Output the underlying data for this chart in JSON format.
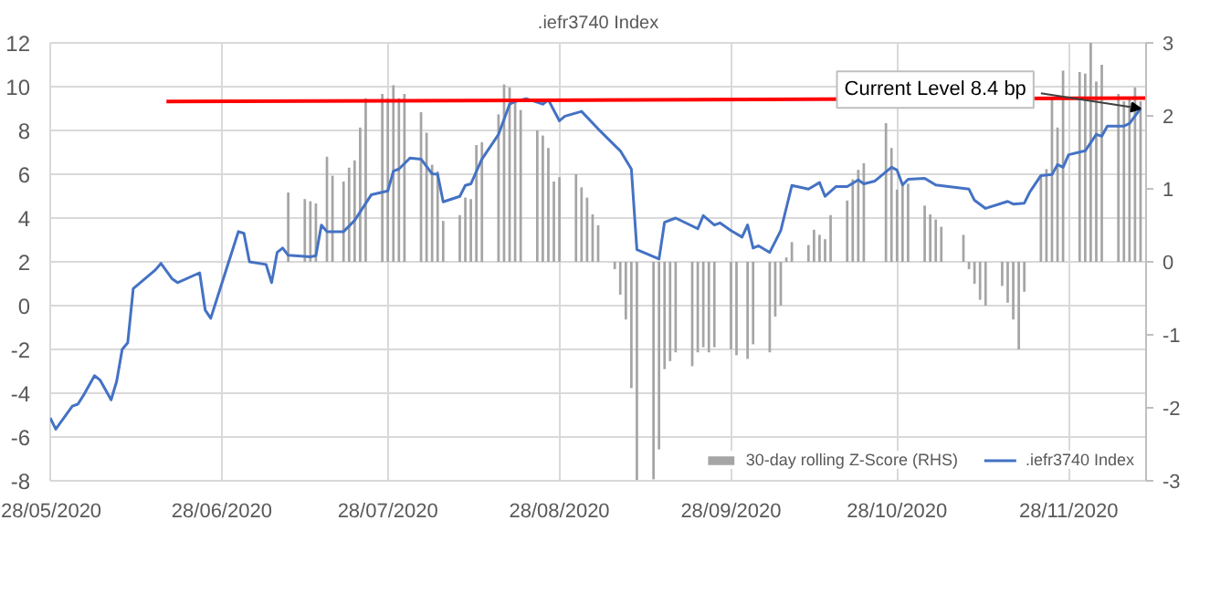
{
  "chart_data": {
    "type": "line",
    "title": ".iefr3740 Index",
    "xlim": [
      "2020-05-28",
      "2020-12-12"
    ],
    "xticks": [
      {
        "value": "2020-05-28",
        "label": "28/05/2020"
      },
      {
        "value": "2020-06-28",
        "label": "28/06/2020"
      },
      {
        "value": "2020-07-28",
        "label": "28/07/2020"
      },
      {
        "value": "2020-08-28",
        "label": "28/08/2020"
      },
      {
        "value": "2020-09-28",
        "label": "28/09/2020"
      },
      {
        "value": "2020-10-28",
        "label": "28/10/2020"
      },
      {
        "value": "2020-11-28",
        "label": "28/11/2020"
      }
    ],
    "ylim": [
      -8,
      12
    ],
    "yticks": [
      -8,
      -6,
      -4,
      -2,
      0,
      2,
      4,
      6,
      8,
      10,
      12
    ],
    "y2lim": [
      -3,
      3
    ],
    "y2ticks": [
      -3,
      -2,
      -1,
      0,
      1,
      2,
      3
    ],
    "grid": true,
    "legend": "bottom right",
    "annotations": [
      {
        "text": "Current Level 8.4 bp",
        "x": "2020-12-11",
        "y": 9.0
      }
    ],
    "series": [
      {
        "name": "30-day rolling Z-Score (RHS)",
        "type": "bar",
        "axis": "y2",
        "color": "#a5a5a5",
        "x": [
          "2020-07-10",
          "2020-07-13",
          "2020-07-14",
          "2020-07-15",
          "2020-07-17",
          "2020-07-18",
          "2020-07-20",
          "2020-07-21",
          "2020-07-22",
          "2020-07-23",
          "2020-07-24",
          "2020-07-27",
          "2020-07-28",
          "2020-07-29",
          "2020-07-30",
          "2020-07-31",
          "2020-08-03",
          "2020-08-04",
          "2020-08-05",
          "2020-08-06",
          "2020-08-07",
          "2020-08-10",
          "2020-08-11",
          "2020-08-12",
          "2020-08-13",
          "2020-08-14",
          "2020-08-17",
          "2020-08-18",
          "2020-08-19",
          "2020-08-20",
          "2020-08-21",
          "2020-08-24",
          "2020-08-25",
          "2020-08-26",
          "2020-08-27",
          "2020-08-28",
          "2020-08-31",
          "2020-09-01",
          "2020-09-02",
          "2020-09-03",
          "2020-09-04",
          "2020-09-07",
          "2020-09-08",
          "2020-09-09",
          "2020-09-10",
          "2020-09-11",
          "2020-09-14",
          "2020-09-15",
          "2020-09-16",
          "2020-09-17",
          "2020-09-18",
          "2020-09-21",
          "2020-09-22",
          "2020-09-23",
          "2020-09-24",
          "2020-09-25",
          "2020-09-28",
          "2020-09-29",
          "2020-10-01",
          "2020-10-02",
          "2020-10-05",
          "2020-10-06",
          "2020-10-07",
          "2020-10-08",
          "2020-10-09",
          "2020-10-12",
          "2020-10-13",
          "2020-10-14",
          "2020-10-15",
          "2020-10-16",
          "2020-10-19",
          "2020-10-20",
          "2020-10-21",
          "2020-10-22",
          "2020-10-26",
          "2020-10-27",
          "2020-10-28",
          "2020-10-29",
          "2020-10-30",
          "2020-11-02",
          "2020-11-03",
          "2020-11-04",
          "2020-11-05",
          "2020-11-09",
          "2020-11-10",
          "2020-11-11",
          "2020-11-12",
          "2020-11-13",
          "2020-11-16",
          "2020-11-17",
          "2020-11-18",
          "2020-11-19",
          "2020-11-20",
          "2020-11-23",
          "2020-11-24",
          "2020-11-25",
          "2020-11-26",
          "2020-11-27",
          "2020-11-30",
          "2020-12-01",
          "2020-12-02",
          "2020-12-03",
          "2020-12-04",
          "2020-12-07",
          "2020-12-08",
          "2020-12-09",
          "2020-12-10",
          "2020-12-11"
        ],
        "values": [
          0.95,
          0.86,
          0.83,
          0.8,
          1.44,
          1.18,
          1.1,
          1.29,
          1.39,
          1.84,
          2.24,
          2.3,
          2.24,
          2.42,
          2.24,
          2.3,
          2.05,
          1.77,
          1.33,
          1.24,
          0.56,
          0.64,
          0.88,
          0.86,
          1.6,
          1.64,
          2.02,
          2.43,
          2.39,
          2.2,
          2.08,
          1.8,
          1.73,
          1.56,
          1.1,
          1.16,
          1.2,
          1.02,
          0.88,
          0.65,
          0.5,
          -0.1,
          -0.45,
          -0.79,
          -1.73,
          -3.0,
          -2.98,
          -2.57,
          -1.47,
          -1.36,
          -1.24,
          -1.43,
          -1.24,
          -1.17,
          -1.24,
          -1.17,
          -1.2,
          -1.28,
          -1.33,
          -1.13,
          -1.24,
          -0.75,
          -0.6,
          0.06,
          0.27,
          0.23,
          0.44,
          0.37,
          0.31,
          0.64,
          0.84,
          1.13,
          1.26,
          1.35,
          1.9,
          1.56,
          0.99,
          1.07,
          1.07,
          0.77,
          0.65,
          0.58,
          0.48,
          0.37,
          -0.1,
          -0.3,
          -0.52,
          -0.6,
          -0.33,
          -0.56,
          -0.79,
          -1.2,
          -0.41,
          1.18,
          1.27,
          2.24,
          1.84,
          2.62,
          2.6,
          2.58,
          3.0,
          2.47,
          2.7,
          2.3,
          2.2,
          2.24,
          2.39,
          2.2
        ]
      },
      {
        "name": ".iefr3740 Index",
        "color": "#4472c4",
        "x": [
          "2020-05-28",
          "2020-05-29",
          "2020-06-01",
          "2020-06-02",
          "2020-06-03",
          "2020-06-05",
          "2020-06-06",
          "2020-06-08",
          "2020-06-09",
          "2020-06-10",
          "2020-06-11",
          "2020-06-12",
          "2020-06-16",
          "2020-06-17",
          "2020-06-19",
          "2020-06-20",
          "2020-06-24",
          "2020-06-25",
          "2020-06-26",
          "2020-06-29",
          "2020-07-01",
          "2020-07-02",
          "2020-07-03",
          "2020-07-06",
          "2020-07-07",
          "2020-07-08",
          "2020-07-09",
          "2020-07-10",
          "2020-07-14",
          "2020-07-15",
          "2020-07-16",
          "2020-07-17",
          "2020-07-20",
          "2020-07-22",
          "2020-07-25",
          "2020-07-28",
          "2020-07-29",
          "2020-07-30",
          "2020-08-01",
          "2020-08-03",
          "2020-08-05",
          "2020-08-06",
          "2020-08-07",
          "2020-08-10",
          "2020-08-11",
          "2020-08-12",
          "2020-08-14",
          "2020-08-17",
          "2020-08-19",
          "2020-08-20",
          "2020-08-22",
          "2020-08-25",
          "2020-08-26",
          "2020-08-28",
          "2020-08-29",
          "2020-09-01",
          "2020-09-04",
          "2020-09-08",
          "2020-09-10",
          "2020-09-11",
          "2020-09-15",
          "2020-09-16",
          "2020-09-18",
          "2020-09-22",
          "2020-09-23",
          "2020-09-25",
          "2020-09-26",
          "2020-09-28",
          "2020-09-30",
          "2020-10-01",
          "2020-10-02",
          "2020-10-03",
          "2020-10-05",
          "2020-10-07",
          "2020-10-09",
          "2020-10-12",
          "2020-10-14",
          "2020-10-15",
          "2020-10-17",
          "2020-10-19",
          "2020-10-21",
          "2020-10-22",
          "2020-10-24",
          "2020-10-27",
          "2020-10-28",
          "2020-10-29",
          "2020-10-30",
          "2020-11-02",
          "2020-11-04",
          "2020-11-10",
          "2020-11-11",
          "2020-11-13",
          "2020-11-17",
          "2020-11-18",
          "2020-11-20",
          "2020-11-21",
          "2020-11-23",
          "2020-11-25",
          "2020-11-26",
          "2020-11-27",
          "2020-11-28",
          "2020-12-01",
          "2020-12-03",
          "2020-12-04",
          "2020-12-05",
          "2020-12-08",
          "2020-12-09",
          "2020-12-11"
        ],
        "values": [
          -5.13,
          -5.64,
          -4.59,
          -4.5,
          -4.1,
          -3.2,
          -3.4,
          -4.3,
          -3.46,
          -2.0,
          -1.7,
          0.78,
          1.63,
          1.93,
          1.23,
          1.05,
          1.5,
          -0.2,
          -0.58,
          1.8,
          3.38,
          3.3,
          2.0,
          1.88,
          1.05,
          2.43,
          2.63,
          2.3,
          2.23,
          2.28,
          3.68,
          3.38,
          3.38,
          3.89,
          5.06,
          5.24,
          6.14,
          6.24,
          6.74,
          6.69,
          6.02,
          6.0,
          4.74,
          4.99,
          5.49,
          5.56,
          6.69,
          7.82,
          9.2,
          9.32,
          9.45,
          9.2,
          9.4,
          8.44,
          8.65,
          8.87,
          8.07,
          7.07,
          6.24,
          2.56,
          2.13,
          3.81,
          4.0,
          3.51,
          4.11,
          3.68,
          3.78,
          3.43,
          3.13,
          3.68,
          2.63,
          2.73,
          2.43,
          3.43,
          5.49,
          5.32,
          5.62,
          4.99,
          5.44,
          5.44,
          5.74,
          5.56,
          5.69,
          6.32,
          6.19,
          5.51,
          5.77,
          5.81,
          5.51,
          5.32,
          4.81,
          4.44,
          4.76,
          4.64,
          4.68,
          5.19,
          5.94,
          5.99,
          6.44,
          6.32,
          6.89,
          7.07,
          7.82,
          7.74,
          8.2,
          8.2,
          8.32,
          9.0
        ]
      },
      {
        "color": "#ff0000",
        "x": [
          "2020-06-18",
          "2020-12-12"
        ],
        "values": [
          9.32,
          9.48
        ]
      }
    ]
  }
}
